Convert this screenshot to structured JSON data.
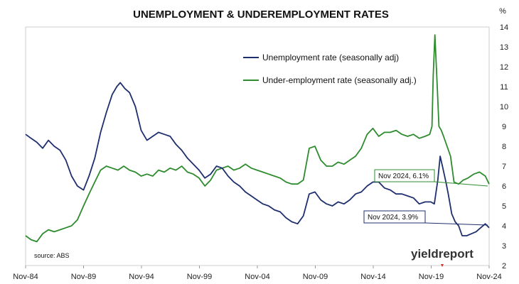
{
  "chart_data": {
    "type": "line",
    "title": "UNEMPLOYMENT & UNDEREMPLOYMENT RATES",
    "y_unit": "%",
    "ylim": [
      2,
      14
    ],
    "y_ticks": [
      "2",
      "3",
      "4",
      "5",
      "6",
      "7",
      "8",
      "9",
      "10",
      "11",
      "12",
      "13",
      "14"
    ],
    "x_tick_labels": [
      "Nov-84",
      "Nov-89",
      "Nov-94",
      "Nov-99",
      "Nov-04",
      "Nov-09",
      "Nov-14",
      "Nov-19",
      "Nov-24"
    ],
    "x_tick_years": [
      1984.83,
      1989.83,
      1994.83,
      1999.83,
      2004.83,
      2009.83,
      2014.83,
      2019.83,
      2024.83
    ],
    "xlim": [
      1984.83,
      2024.83
    ],
    "grid": false,
    "legend_position": "top-center",
    "source": "source: ABS",
    "brand": "yieldreport",
    "series": [
      {
        "name": "Unemployment rate (seasonally adj)",
        "color": "#1f2f6e",
        "x": [
          1984.83,
          1985.3,
          1985.8,
          1986.3,
          1986.8,
          1987.3,
          1987.8,
          1988.3,
          1988.8,
          1989.3,
          1989.83,
          1990.3,
          1990.8,
          1991.3,
          1991.8,
          1992.3,
          1992.7,
          1993.0,
          1993.4,
          1993.8,
          1994.3,
          1994.8,
          1995.3,
          1995.8,
          1996.3,
          1996.8,
          1997.3,
          1997.8,
          1998.3,
          1998.8,
          1999.3,
          1999.8,
          2000.3,
          2000.8,
          2001.3,
          2001.8,
          2002.3,
          2002.8,
          2003.3,
          2003.8,
          2004.3,
          2004.8,
          2005.3,
          2005.8,
          2006.3,
          2006.8,
          2007.3,
          2007.8,
          2008.3,
          2008.8,
          2009.3,
          2009.8,
          2010.3,
          2010.8,
          2011.3,
          2011.8,
          2012.3,
          2012.8,
          2013.3,
          2013.8,
          2014.3,
          2014.8,
          2015.3,
          2015.8,
          2016.3,
          2016.8,
          2017.3,
          2017.8,
          2018.3,
          2018.8,
          2019.3,
          2019.8,
          2020.1,
          2020.4,
          2020.6,
          2020.8,
          2021.1,
          2021.3,
          2021.6,
          2021.9,
          2022.2,
          2022.5,
          2022.9,
          2023.3,
          2023.7,
          2024.1,
          2024.5,
          2024.83
        ],
        "y": [
          8.6,
          8.4,
          8.2,
          7.9,
          8.3,
          8.0,
          7.8,
          7.3,
          6.5,
          6.0,
          5.8,
          6.5,
          7.4,
          8.7,
          9.7,
          10.6,
          11.0,
          11.2,
          10.9,
          10.7,
          10.0,
          8.8,
          8.3,
          8.5,
          8.7,
          8.6,
          8.5,
          8.1,
          7.8,
          7.4,
          7.1,
          6.8,
          6.4,
          6.6,
          7.0,
          6.9,
          6.5,
          6.2,
          6.0,
          5.7,
          5.5,
          5.3,
          5.1,
          5.0,
          4.8,
          4.7,
          4.4,
          4.2,
          4.1,
          4.5,
          5.6,
          5.7,
          5.3,
          5.1,
          5.0,
          5.2,
          5.1,
          5.3,
          5.6,
          5.7,
          6.0,
          6.2,
          6.2,
          5.9,
          5.8,
          5.6,
          5.6,
          5.5,
          5.4,
          5.1,
          5.2,
          5.2,
          5.1,
          6.3,
          7.5,
          7.0,
          6.2,
          5.6,
          4.6,
          4.2,
          4.0,
          3.5,
          3.5,
          3.6,
          3.7,
          3.9,
          4.1,
          3.9
        ],
        "end_label": "Nov 2024, 3.9%"
      },
      {
        "name": "Under-employment rate (seasonally adj.)",
        "color": "#2e8b2e",
        "x": [
          1984.83,
          1985.3,
          1985.8,
          1986.3,
          1986.8,
          1987.3,
          1987.8,
          1988.3,
          1988.8,
          1989.3,
          1989.83,
          1990.3,
          1990.8,
          1991.3,
          1991.8,
          1992.3,
          1992.8,
          1993.3,
          1993.8,
          1994.3,
          1994.8,
          1995.3,
          1995.8,
          1996.3,
          1996.8,
          1997.3,
          1997.8,
          1998.3,
          1998.8,
          1999.3,
          1999.8,
          2000.3,
          2000.8,
          2001.3,
          2001.8,
          2002.3,
          2002.8,
          2003.3,
          2003.8,
          2004.3,
          2004.8,
          2005.3,
          2005.8,
          2006.3,
          2006.8,
          2007.3,
          2007.8,
          2008.3,
          2008.8,
          2009.3,
          2009.8,
          2010.3,
          2010.8,
          2011.3,
          2011.8,
          2012.3,
          2012.8,
          2013.3,
          2013.8,
          2014.3,
          2014.8,
          2015.3,
          2015.8,
          2016.3,
          2016.8,
          2017.3,
          2017.8,
          2018.3,
          2018.8,
          2019.3,
          2019.7,
          2019.9,
          2020.0,
          2020.15,
          2020.35,
          2020.5,
          2020.7,
          2020.9,
          2021.2,
          2021.5,
          2021.8,
          2022.2,
          2022.6,
          2023.0,
          2023.5,
          2024.0,
          2024.5,
          2024.83
        ],
        "y": [
          3.5,
          3.3,
          3.2,
          3.6,
          3.8,
          3.7,
          3.8,
          3.9,
          4.0,
          4.3,
          5.0,
          5.6,
          6.2,
          6.8,
          7.0,
          6.9,
          6.8,
          7.0,
          6.8,
          6.7,
          6.5,
          6.6,
          6.5,
          6.8,
          6.7,
          6.9,
          6.8,
          7.0,
          6.7,
          6.6,
          6.4,
          6.0,
          6.3,
          6.8,
          6.9,
          7.0,
          6.8,
          6.9,
          7.1,
          6.9,
          6.8,
          6.7,
          6.6,
          6.5,
          6.4,
          6.2,
          6.1,
          6.1,
          6.3,
          7.9,
          8.0,
          7.3,
          7.0,
          7.0,
          7.2,
          7.1,
          7.3,
          7.5,
          7.9,
          8.6,
          8.9,
          8.5,
          8.7,
          8.7,
          8.8,
          8.6,
          8.5,
          8.6,
          8.4,
          8.5,
          8.6,
          9.0,
          11.5,
          13.6,
          11.0,
          9.0,
          8.8,
          8.5,
          8.0,
          7.5,
          6.2,
          6.1,
          6.3,
          6.4,
          6.6,
          6.7,
          6.5,
          6.1
        ],
        "end_label": "Nov 2024, 6.1%"
      }
    ]
  }
}
